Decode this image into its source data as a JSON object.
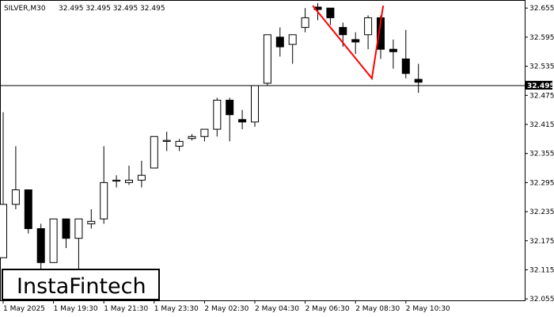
{
  "header": {
    "symbol_timeframe": "SILVER,M30",
    "ohlc": "32.495 32.495 32.495 32.495"
  },
  "logo": {
    "text": "InstaFintech"
  },
  "current_price_label": "32.495",
  "colors": {
    "background": "#ffffff",
    "candle": "#000000",
    "pattern_line": "#ff0000",
    "price_line": "#000000"
  },
  "chart_data": {
    "type": "candlestick",
    "title": "SILVER,M30",
    "y_ticks": [
      "32.655",
      "32.595",
      "32.535",
      "32.475",
      "32.415",
      "32.355",
      "32.295",
      "32.235",
      "32.175",
      "32.115",
      "32.055"
    ],
    "x_ticks": [
      "1 May 2025",
      "1 May 19:30",
      "1 May 21:30",
      "1 May 23:30",
      "2 May 02:30",
      "2 May 04:30",
      "2 May 06:30",
      "2 May 08:30",
      "2 May 10:30"
    ],
    "ylim": [
      32.052,
      32.67
    ],
    "current_price": 32.495,
    "candles": [
      {
        "o": 32.14,
        "h": 32.44,
        "l": 32.14,
        "c": 32.25
      },
      {
        "o": 32.25,
        "h": 32.37,
        "l": 32.24,
        "c": 32.28
      },
      {
        "o": 32.28,
        "h": 32.28,
        "l": 32.19,
        "c": 32.2
      },
      {
        "o": 32.2,
        "h": 32.21,
        "l": 32.1,
        "c": 32.13
      },
      {
        "o": 32.13,
        "h": 32.22,
        "l": 32.13,
        "c": 32.22
      },
      {
        "o": 32.22,
        "h": 32.22,
        "l": 32.16,
        "c": 32.18
      },
      {
        "o": 32.18,
        "h": 32.22,
        "l": 32.11,
        "c": 32.22
      },
      {
        "o": 32.21,
        "h": 32.24,
        "l": 32.2,
        "c": 32.215
      },
      {
        "o": 32.22,
        "h": 32.37,
        "l": 32.21,
        "c": 32.295
      },
      {
        "o": 32.298,
        "h": 32.31,
        "l": 32.285,
        "c": 32.3
      },
      {
        "o": 32.295,
        "h": 32.33,
        "l": 32.29,
        "c": 32.3
      },
      {
        "o": 32.3,
        "h": 32.34,
        "l": 32.285,
        "c": 32.31
      },
      {
        "o": 32.325,
        "h": 32.39,
        "l": 32.325,
        "c": 32.39
      },
      {
        "o": 32.38,
        "h": 32.4,
        "l": 32.36,
        "c": 32.382
      },
      {
        "o": 32.37,
        "h": 32.385,
        "l": 32.36,
        "c": 32.38
      },
      {
        "o": 32.386,
        "h": 32.395,
        "l": 32.382,
        "c": 32.39
      },
      {
        "o": 32.39,
        "h": 32.405,
        "l": 32.38,
        "c": 32.405
      },
      {
        "o": 32.405,
        "h": 32.47,
        "l": 32.39,
        "c": 32.465
      },
      {
        "o": 32.465,
        "h": 32.47,
        "l": 32.38,
        "c": 32.435
      },
      {
        "o": 32.425,
        "h": 32.445,
        "l": 32.405,
        "c": 32.42
      },
      {
        "o": 32.42,
        "h": 32.495,
        "l": 32.41,
        "c": 32.495
      },
      {
        "o": 32.5,
        "h": 32.6,
        "l": 32.495,
        "c": 32.6
      },
      {
        "o": 32.595,
        "h": 32.615,
        "l": 32.555,
        "c": 32.575
      },
      {
        "o": 32.58,
        "h": 32.6,
        "l": 32.54,
        "c": 32.6
      },
      {
        "o": 32.615,
        "h": 32.655,
        "l": 32.605,
        "c": 32.635
      },
      {
        "o": 32.657,
        "h": 32.665,
        "l": 32.63,
        "c": 32.652
      },
      {
        "o": 32.655,
        "h": 32.655,
        "l": 32.62,
        "c": 32.635
      },
      {
        "o": 32.615,
        "h": 32.625,
        "l": 32.575,
        "c": 32.6
      },
      {
        "o": 32.59,
        "h": 32.605,
        "l": 32.56,
        "c": 32.585
      },
      {
        "o": 32.6,
        "h": 32.64,
        "l": 32.57,
        "c": 32.635
      },
      {
        "o": 32.635,
        "h": 32.64,
        "l": 32.55,
        "c": 32.57
      },
      {
        "o": 32.57,
        "h": 32.59,
        "l": 32.53,
        "c": 32.565
      },
      {
        "o": 32.55,
        "h": 32.61,
        "l": 32.51,
        "c": 32.52
      },
      {
        "o": 32.508,
        "h": 32.54,
        "l": 32.48,
        "c": 32.502
      }
    ],
    "pattern_line": [
      {
        "candle": 24.6,
        "price": 32.66
      },
      {
        "candle": 29.3,
        "price": 32.51
      },
      {
        "candle": 30.2,
        "price": 32.66
      }
    ]
  }
}
